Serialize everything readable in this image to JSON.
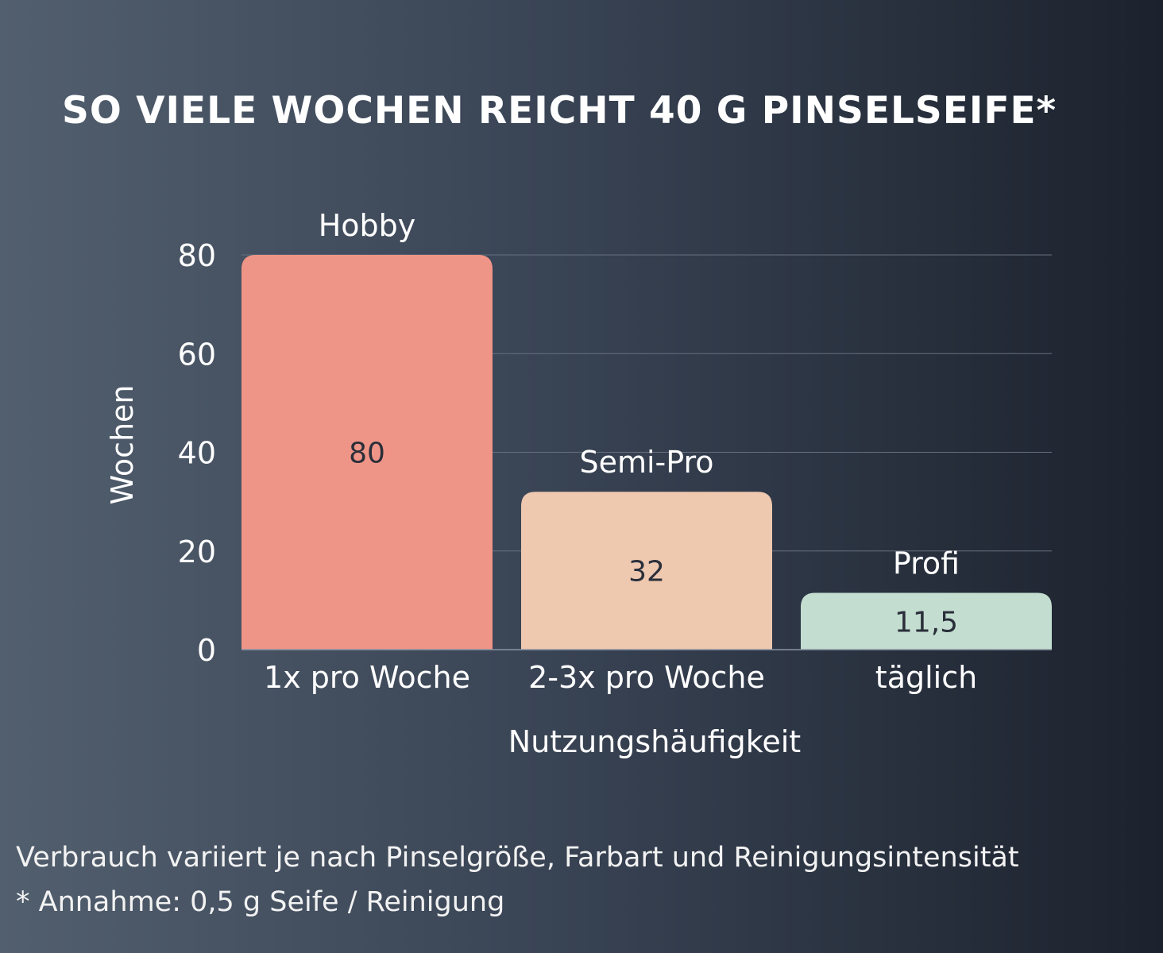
{
  "title": "SO VIELE WOCHEN REICHT 40 G PINSELSEIFE*",
  "chart_data": {
    "type": "bar",
    "categories": [
      "1x pro Woche",
      "2-3x pro Woche",
      "täglich"
    ],
    "values": [
      80,
      32,
      11.5
    ],
    "value_labels": [
      "80",
      "32",
      "11,5"
    ],
    "bar_top_labels": [
      "Hobby",
      "Semi-Pro",
      "Profi"
    ],
    "colors": [
      "#ef9587",
      "#eec8af",
      "#c3ddd0"
    ],
    "xlabel": "Nutzungshäufigkeit",
    "ylabel": "Wochen",
    "ylim": [
      0,
      80
    ],
    "yticks": [
      0,
      20,
      40,
      60,
      80
    ],
    "grid": true
  },
  "footnotes": {
    "line1": "Verbrauch variiert je nach Pinselgröße, Farbart und Reinigungsintensität",
    "line2": "* Annahme: 0,5 g Seife / Reinigung"
  }
}
